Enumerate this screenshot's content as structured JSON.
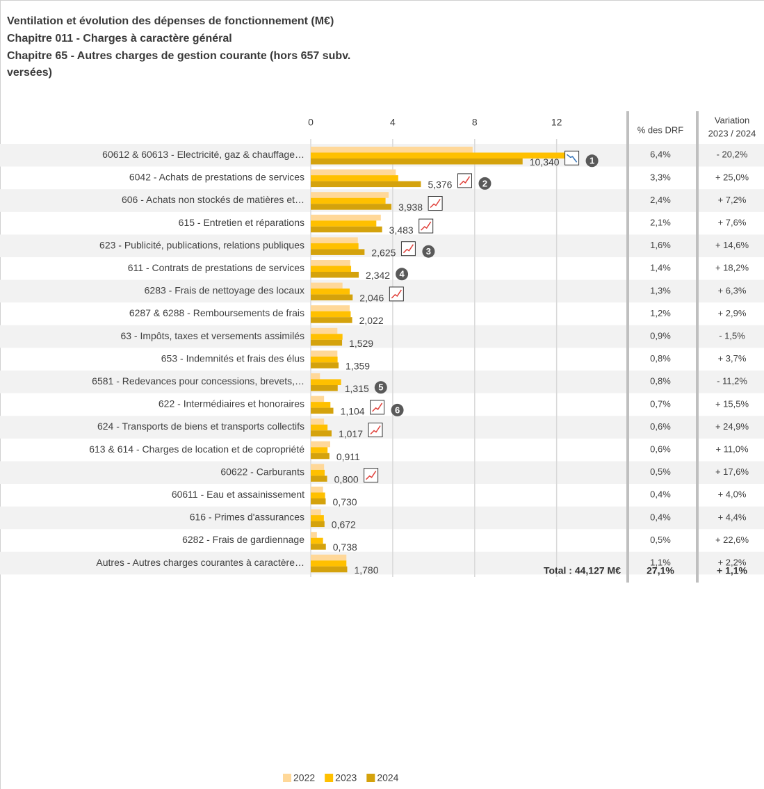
{
  "chart_data": {
    "type": "bar",
    "orientation": "horizontal",
    "title": [
      "Ventilation et évolution des dépenses de fonctionnement (M€)",
      "Chapitre 011 - Charges à caractère  général",
      "Chapitre 65 - Autres charges de gestion courante  (hors 657 subv.",
      "versées)"
    ],
    "categories": [
      "60612 & 60613 - Electricité, gaz & chauffage…",
      "6042 - Achats de prestations de services",
      "606 - Achats non stockés de matières et…",
      "615 - Entretien et réparations",
      "623 - Publicité, publications, relations publiques",
      "611 - Contrats de prestations de services",
      "6283 - Frais de nettoyage des locaux",
      "6287 & 6288 - Remboursements de frais",
      "63 - Impôts, taxes et versements assimilés",
      "653 - Indemnités et frais des élus",
      "6581 - Redevances pour concessions, brevets,…",
      "622 - Intermédiaires et honoraires",
      "624 - Transports de biens et transports collectifs",
      "613 & 614 - Charges de location et de copropriété",
      "60622 - Carburants",
      "60611 - Eau et assainissement",
      "616 - Primes d'assurances",
      "6282 - Frais de gardiennage",
      "Autres - Autres charges courantes à caractère…"
    ],
    "series": [
      {
        "name": "2022",
        "color": "#ffd899",
        "values": [
          7.9,
          4.15,
          3.8,
          3.42,
          2.3,
          1.93,
          1.55,
          1.9,
          1.3,
          1.3,
          0.45,
          0.65,
          0.65,
          0.95,
          0.65,
          0.6,
          0.5,
          0.3,
          1.74
        ]
      },
      {
        "name": "2023",
        "color": "#ffc000",
        "values": [
          13.0,
          4.27,
          3.65,
          3.2,
          2.33,
          1.97,
          1.9,
          1.95,
          1.55,
          1.31,
          1.48,
          0.96,
          0.82,
          0.82,
          0.68,
          0.7,
          0.64,
          0.6,
          1.74
        ]
      },
      {
        "name": "2024",
        "color": "#d4a20c",
        "values": [
          10.34,
          5.376,
          3.938,
          3.483,
          2.625,
          2.342,
          2.046,
          2.022,
          1.529,
          1.359,
          1.315,
          1.104,
          1.017,
          0.911,
          0.8,
          0.73,
          0.672,
          0.738,
          1.78
        ],
        "value_labels": [
          "10,340",
          "5,376",
          "3,938",
          "3,483",
          "2,625",
          "2,342",
          "2,046",
          "2,022",
          "1,529",
          "1,359",
          "1,315",
          "1,104",
          "1,017",
          "0,911",
          "0,800",
          "0,730",
          "0,672",
          "0,738",
          "1,780"
        ]
      }
    ],
    "xlim": [
      0,
      15.2
    ],
    "xticks": [
      0,
      4,
      8,
      12
    ],
    "grid": true,
    "trend_icons": [
      "down",
      "up",
      "up",
      "up",
      "up",
      null,
      "up",
      null,
      null,
      null,
      null,
      "up",
      "up",
      null,
      "up",
      null,
      null,
      null,
      null
    ],
    "badges": [
      1,
      2,
      null,
      null,
      3,
      4,
      null,
      null,
      null,
      null,
      5,
      6,
      null,
      null,
      null,
      null,
      null,
      null,
      null
    ],
    "pct_header": "% des DRF",
    "pct_drf": [
      "6,4%",
      "3,3%",
      "2,4%",
      "2,1%",
      "1,6%",
      "1,4%",
      "1,3%",
      "1,2%",
      "0,9%",
      "0,8%",
      "0,8%",
      "0,7%",
      "0,6%",
      "0,6%",
      "0,5%",
      "0,4%",
      "0,4%",
      "0,5%",
      "1,1%"
    ],
    "variation_header": [
      "Variation",
      "2023 / 2024"
    ],
    "variation": [
      "- 20,2%",
      "+ 25,0%",
      "+ 7,2%",
      "+ 7,6%",
      "+ 14,6%",
      "+ 18,2%",
      "+ 6,3%",
      "+ 2,9%",
      "- 1,5%",
      "+ 3,7%",
      "- 11,2%",
      "+ 15,5%",
      "+ 24,9%",
      "+ 11,0%",
      "+ 17,6%",
      "+ 4,0%",
      "+ 4,4%",
      "+ 22,6%",
      "+ 2,2%"
    ],
    "total": {
      "label": "Total :  44,127 M€",
      "pct": "27,1%",
      "variation": "+ 1,1%"
    }
  }
}
